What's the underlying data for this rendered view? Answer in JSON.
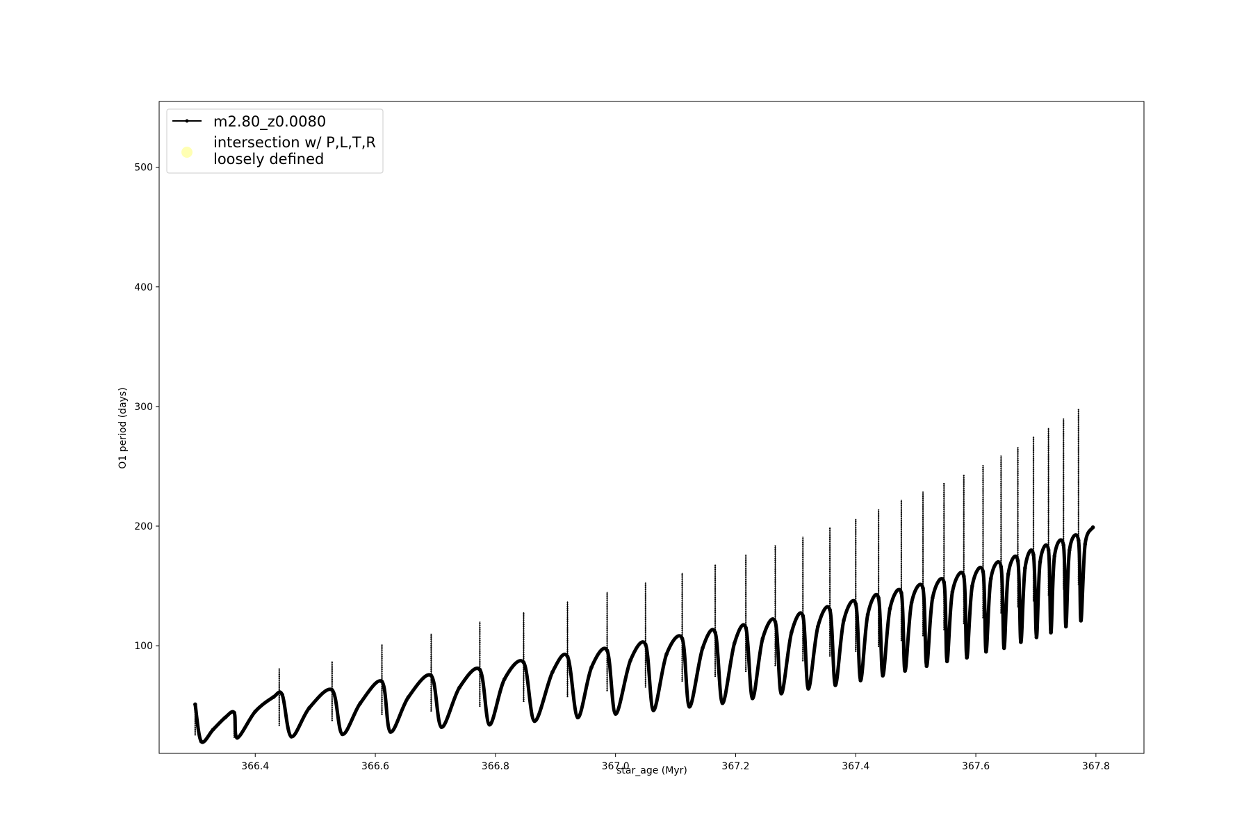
{
  "chart_data": {
    "type": "line",
    "xlabel": "star_age (Myr)",
    "ylabel": "O1 period (days)",
    "xlim": [
      366.24,
      367.88
    ],
    "ylim": [
      10,
      555
    ],
    "xticks": [
      366.4,
      366.6,
      366.8,
      367.0,
      367.2,
      367.4,
      367.6,
      367.8
    ],
    "xtick_labels": [
      "366.4",
      "366.6",
      "366.8",
      "367.0",
      "367.2",
      "367.4",
      "367.6",
      "367.8"
    ],
    "yticks": [
      100,
      200,
      300,
      400,
      500
    ],
    "ytick_labels": [
      "100",
      "200",
      "300",
      "400",
      "500"
    ],
    "grid": false,
    "legend_position": "top-left",
    "legend": [
      {
        "label": "m2.80_z0.0080",
        "kind": "line-marker",
        "color": "#000000"
      },
      {
        "label": "intersection w/ P,L,T,R\nloosely defined",
        "kind": "point",
        "color": "#ffffb3"
      }
    ],
    "series": [
      {
        "name": "m2.80_z0.0080",
        "color": "#000000",
        "x": [
          366.3,
          366.31,
          366.33,
          366.35,
          366.365,
          366.37,
          366.4,
          366.43,
          366.445,
          366.46,
          366.49,
          366.528,
          366.545,
          366.575,
          366.611,
          366.625,
          366.655,
          366.693,
          366.71,
          366.74,
          366.774,
          366.79,
          366.815,
          366.847,
          366.865,
          366.895,
          366.92,
          366.937,
          366.96,
          366.986,
          367.0,
          367.025,
          367.05,
          367.063,
          367.085,
          367.111,
          367.123,
          367.145,
          367.166,
          367.178,
          367.198,
          367.217,
          367.228,
          367.245,
          367.266,
          367.276,
          367.293,
          367.312,
          367.321,
          367.337,
          367.357,
          367.366,
          367.38,
          367.4,
          367.408,
          367.42,
          367.438,
          367.445,
          367.457,
          367.476,
          367.482,
          367.493,
          367.512,
          367.518,
          367.528,
          367.547,
          367.552,
          367.561,
          367.58,
          367.585,
          367.594,
          367.612,
          367.617,
          367.625,
          367.642,
          367.647,
          367.654,
          367.67,
          367.675,
          367.682,
          367.696,
          367.701,
          367.707,
          367.721,
          367.725,
          367.731,
          367.746,
          367.75,
          367.756,
          367.771,
          367.775,
          367.782,
          367.795
        ],
        "y": [
          51,
          20,
          30,
          40,
          44,
          23,
          45,
          57,
          59,
          24,
          48,
          63,
          26,
          52,
          70,
          28,
          57,
          75,
          32,
          65,
          80,
          34,
          72,
          86,
          37,
          78,
          91,
          40,
          82,
          96,
          43,
          88,
          101,
          46,
          93,
          106,
          49,
          98,
          111,
          52,
          102,
          115,
          56,
          106,
          120,
          60,
          111,
          125,
          64,
          116,
          130,
          67,
          121,
          135,
          71,
          126,
          140,
          75,
          131,
          144,
          79,
          136,
          148,
          83,
          140,
          153,
          87,
          145,
          158,
          90,
          150,
          162,
          95,
          156,
          166,
          98,
          160,
          171,
          103,
          165,
          176,
          107,
          170,
          180,
          111,
          175,
          184,
          116,
          180,
          188,
          121,
          185,
          199
        ]
      }
    ],
    "spikes": {
      "x": [
        366.3,
        366.365,
        366.44,
        366.528,
        366.611,
        366.693,
        366.774,
        366.847,
        366.92,
        366.986,
        367.05,
        367.111,
        367.166,
        367.217,
        367.266,
        367.312,
        367.357,
        367.4,
        367.438,
        367.476,
        367.512,
        367.547,
        367.58,
        367.612,
        367.642,
        367.67,
        367.696,
        367.721,
        367.746,
        367.771
      ],
      "low": [
        25,
        23,
        33,
        37,
        42,
        45,
        49,
        53,
        57,
        62,
        65,
        70,
        74,
        78,
        83,
        87,
        91,
        95,
        99,
        104,
        108,
        113,
        118,
        123,
        127,
        132,
        137,
        142,
        147,
        151
      ],
      "high": [
        51,
        44,
        81,
        87,
        101,
        110,
        120,
        128,
        137,
        145,
        153,
        161,
        168,
        176,
        184,
        191,
        199,
        206,
        214,
        222,
        229,
        236,
        243,
        251,
        259,
        266,
        275,
        282,
        290,
        298
      ]
    }
  }
}
